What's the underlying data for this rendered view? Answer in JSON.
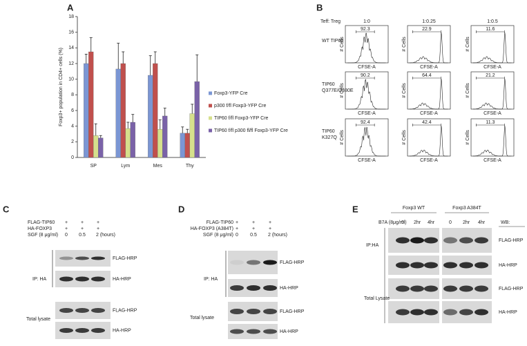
{
  "chart_data": {
    "type": "bar",
    "panel_label": "A",
    "y_label": "Foxp3+ population in CD4+ cells (%)",
    "categories": [
      "SP",
      "Lym",
      "Mes",
      "Thy"
    ],
    "series": [
      {
        "name": "Foxp3-YFP Cre",
        "color": "#7b96d4",
        "values": [
          12,
          11.3,
          10.5,
          3.1
        ],
        "errors": [
          1.2,
          3.3,
          2.5,
          0.8
        ]
      },
      {
        "name": "p300 f/fl Foxp3-YFP Cre",
        "color": "#c0504d",
        "values": [
          13.5,
          12,
          12,
          3.1
        ],
        "errors": [
          1.8,
          1.5,
          1.5,
          0.5
        ]
      },
      {
        "name": "TIP60 f/fl Foxp3-YFP Cre",
        "color": "#d6e08c",
        "values": [
          2.8,
          3.7,
          3.6,
          5.6
        ],
        "errors": [
          1.5,
          0.8,
          1.2,
          1.2
        ]
      },
      {
        "name": "TIP60 f/fl p300 fl/fl Foxp3-YFP Cre",
        "color": "#7a62a8",
        "values": [
          2.5,
          4.5,
          5.3,
          9.7
        ],
        "errors": [
          0.3,
          1,
          1,
          3.4
        ]
      }
    ],
    "ylim": [
      0,
      18
    ],
    "yticks": [
      0,
      2,
      4,
      6,
      8,
      10,
      12,
      14,
      16,
      18
    ],
    "legend": "right"
  },
  "panel_b": {
    "label": "B",
    "header": "Teff: Treg",
    "columns": [
      "1:0",
      "1:0.25",
      "1:0.5"
    ],
    "rows": [
      {
        "name_lines": [
          "WT TIP60"
        ],
        "gates": [
          92.3,
          22.9,
          11.6
        ]
      },
      {
        "name_lines": [
          "TIP60",
          "Q377E/G380E"
        ],
        "gates": [
          90.2,
          64.4,
          21.2
        ]
      },
      {
        "name_lines": [
          "TIP60",
          "K327Q"
        ],
        "gates": [
          92.4,
          42.4,
          11.3
        ]
      }
    ],
    "x_axis_label": "CFSE-A",
    "y_axis_label": "# Cells"
  },
  "panel_c": {
    "label": "C",
    "conditions": [
      {
        "name": "FLAG-TIP60",
        "cells": [
          "+",
          "+",
          "+"
        ]
      },
      {
        "name": "HA-FOXP3",
        "cells": [
          "+",
          "+",
          "+"
        ]
      },
      {
        "name": "SGF (8 μg/ml)",
        "cells": [
          "0",
          "0.5",
          "2 (hours)"
        ]
      }
    ],
    "blots": [
      "FLAG-HRP",
      "HA-HRP",
      "FLAG-HRP",
      "HA-HRP"
    ],
    "groups": [
      "IP: HA",
      "Total lysate"
    ]
  },
  "panel_d": {
    "label": "D",
    "conditions": [
      {
        "name": "FLAG-TIP60",
        "cells": [
          "+",
          "+",
          "+"
        ]
      },
      {
        "name": "HA-FOXP3 (A384T)",
        "cells": [
          "+",
          "+",
          "+"
        ]
      },
      {
        "name": "SGF (8 μg/ml)",
        "cells": [
          "0",
          "0.5",
          "2 (hours)"
        ]
      }
    ],
    "blots": [
      "FLAG-HRP",
      "HA-HRP",
      "FLAG-HRP",
      "HA-HRP"
    ],
    "groups": [
      "IP: HA",
      "Total lysate"
    ]
  },
  "panel_e": {
    "label": "E",
    "treatment": "B7A (8μg/ml)",
    "wb_header": "WB:",
    "lane_groups": [
      {
        "name": "Foxp3 WT",
        "times": [
          "0",
          "2hr",
          "4hr"
        ]
      },
      {
        "name": "Foxp3 A384T",
        "times": [
          "0",
          "2hr",
          "4hr"
        ]
      }
    ],
    "blots": [
      "FLAG-HRP",
      "HA-HRP",
      "FLAG-HRP",
      "HA-HRP"
    ],
    "groups": [
      "IP:HA",
      "Total Lysate"
    ]
  }
}
